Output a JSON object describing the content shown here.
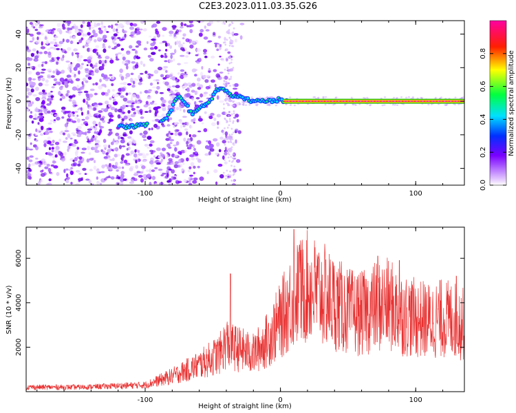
{
  "page": {
    "title": "C2E3.2023.011.03.35.G26"
  },
  "colors": {
    "snr_line": "#e83030",
    "spectral_line": "#e82020",
    "frame": "#000000"
  },
  "chart_data": [
    {
      "type": "heatmap",
      "xlabel": "Height of straight line (km)",
      "ylabel": "Frequency (Hz)",
      "xlim": [
        -188,
        136
      ],
      "ylim": [
        -50,
        48
      ],
      "x_ticks": [
        -100,
        0,
        100
      ],
      "y_ticks": [
        -40,
        -20,
        0,
        20,
        40
      ],
      "colorbar": {
        "label": "Normalized spectral amplitude",
        "range": [
          0.0,
          1.0
        ],
        "ticks": [
          0.0,
          0.2,
          0.4,
          0.6,
          0.8
        ],
        "colormap": "hsv-rainbow (white/violet → blue → cyan → green → yellow → red → magenta)"
      },
      "signal_track": [
        {
          "x": -120,
          "y": -15
        },
        {
          "x": -110,
          "y": -15
        },
        {
          "x": -100,
          "y": -14
        },
        {
          "x": -85,
          "y": -11
        },
        {
          "x": -75,
          "y": 4
        },
        {
          "x": -65,
          "y": -8
        },
        {
          "x": -58,
          "y": -3
        },
        {
          "x": -52,
          "y": 0
        },
        {
          "x": -48,
          "y": 6
        },
        {
          "x": -44,
          "y": 8
        },
        {
          "x": -35,
          "y": 3
        },
        {
          "x": -28,
          "y": 2
        },
        {
          "x": -20,
          "y": 0
        },
        {
          "x": -10,
          "y": 0
        },
        {
          "x": 0,
          "y": 1
        },
        {
          "x": 5,
          "y": 0
        },
        {
          "x": 136,
          "y": 0
        }
      ]
    },
    {
      "type": "line",
      "xlabel": "Height of straight line (km)",
      "ylabel": "SNR (10 * v/v)",
      "xlim": [
        -188,
        136
      ],
      "ylim": [
        0,
        7400
      ],
      "x_ticks": [
        -100,
        0,
        100
      ],
      "y_ticks": [
        2000,
        4000,
        6000
      ],
      "envelope": [
        {
          "x": -188,
          "y": 200
        },
        {
          "x": -150,
          "y": 200
        },
        {
          "x": -100,
          "y": 300
        },
        {
          "x": -80,
          "y": 700
        },
        {
          "x": -60,
          "y": 1200
        },
        {
          "x": -45,
          "y": 1700
        },
        {
          "x": -40,
          "y": 2200
        },
        {
          "x": -35,
          "y": 2000
        },
        {
          "x": -20,
          "y": 1700
        },
        {
          "x": -10,
          "y": 2300
        },
        {
          "x": 0,
          "y": 3200
        },
        {
          "x": 10,
          "y": 4300
        },
        {
          "x": 20,
          "y": 4700
        },
        {
          "x": 30,
          "y": 4400
        },
        {
          "x": 40,
          "y": 4000
        },
        {
          "x": 50,
          "y": 3600
        },
        {
          "x": 60,
          "y": 3500
        },
        {
          "x": 70,
          "y": 3800
        },
        {
          "x": 80,
          "y": 3900
        },
        {
          "x": 90,
          "y": 3500
        },
        {
          "x": 100,
          "y": 3300
        },
        {
          "x": 110,
          "y": 3200
        },
        {
          "x": 120,
          "y": 3300
        },
        {
          "x": 130,
          "y": 3200
        },
        {
          "x": 136,
          "y": 3000
        }
      ],
      "spikes": [
        {
          "x": -37,
          "y": 5300
        },
        {
          "x": 10,
          "y": 7300
        },
        {
          "x": 14,
          "y": 6600
        },
        {
          "x": 72,
          "y": 6100
        },
        {
          "x": 88,
          "y": 5900
        },
        {
          "x": 130,
          "y": 5200
        }
      ]
    }
  ]
}
